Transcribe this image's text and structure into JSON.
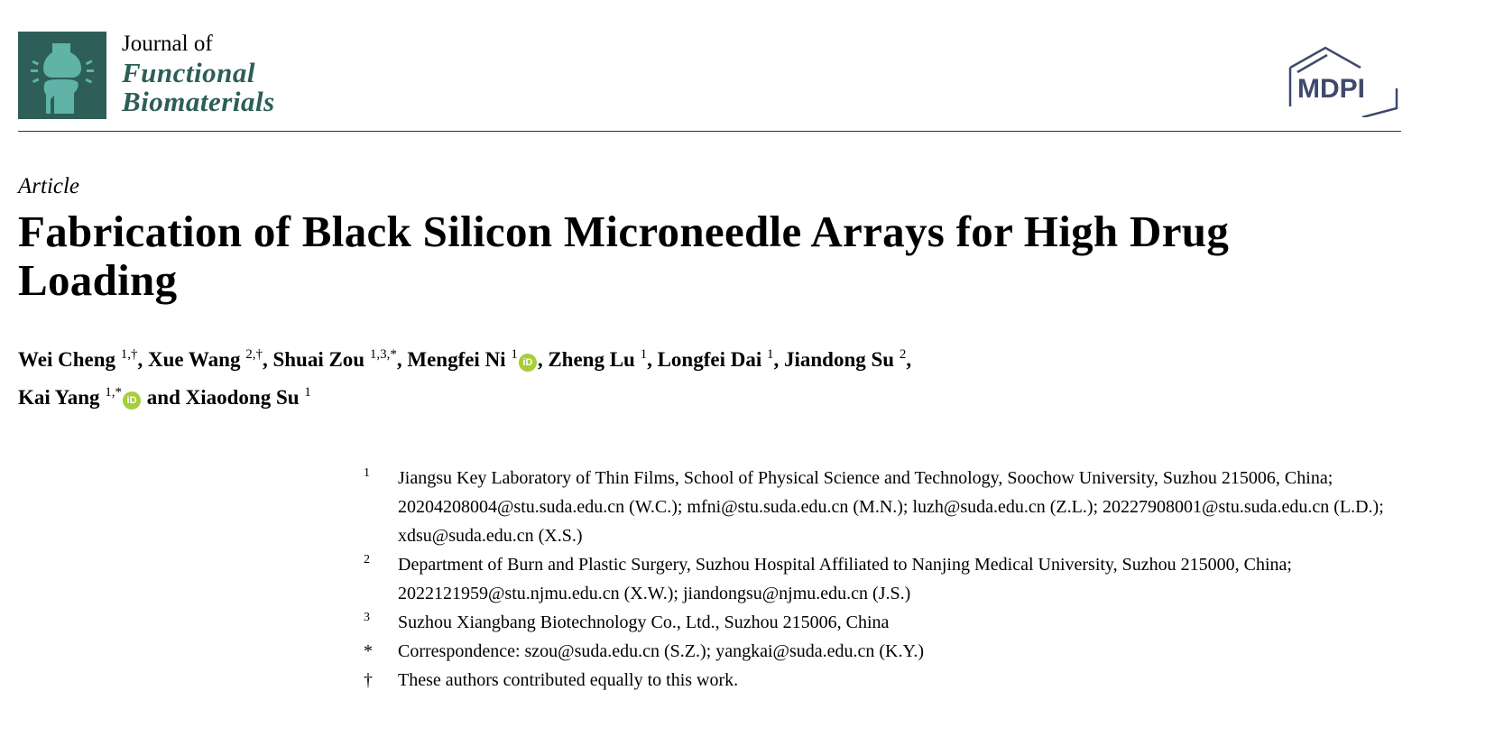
{
  "journal": {
    "line1": "Journal of",
    "line2": "Functional",
    "line3": "Biomaterials",
    "brand_color": "#2d5e57"
  },
  "publisher_logo": {
    "text": "MDPI",
    "color": "#3f4a6b"
  },
  "article_type": "Article",
  "title": "Fabrication of Black Silicon Microneedle Arrays for High Drug Loading",
  "authors": [
    {
      "name": "Wei Cheng",
      "sup": "1,†",
      "orcid": false,
      "sep": ", "
    },
    {
      "name": "Xue Wang",
      "sup": "2,†",
      "orcid": false,
      "sep": ", "
    },
    {
      "name": "Shuai Zou",
      "sup": "1,3,*",
      "orcid": false,
      "sep": ", "
    },
    {
      "name": "Mengfei Ni",
      "sup": "1",
      "orcid": true,
      "sep": ", "
    },
    {
      "name": "Zheng Lu",
      "sup": "1",
      "orcid": false,
      "sep": ", "
    },
    {
      "name": "Longfei Dai",
      "sup": "1",
      "orcid": false,
      "sep": ", "
    },
    {
      "name": "Jiandong Su",
      "sup": "2",
      "orcid": false,
      "sep": ","
    },
    {
      "name": "Kai Yang",
      "sup": "1,*",
      "orcid": true,
      "sep": " and "
    },
    {
      "name": "Xiaodong Su",
      "sup": "1",
      "orcid": false,
      "sep": ""
    }
  ],
  "orcid_icon": {
    "text": "iD",
    "color": "#a6ce39"
  },
  "affiliations": [
    {
      "mark": "1",
      "text": "Jiangsu Key Laboratory of Thin Films, School of Physical Science and Technology, Soochow University, Suzhou 215006, China; 20204208004@stu.suda.edu.cn (W.C.); mfni@stu.suda.edu.cn (M.N.); luzh@suda.edu.cn (Z.L.); 20227908001@stu.suda.edu.cn (L.D.); xdsu@suda.edu.cn (X.S.)"
    },
    {
      "mark": "2",
      "text": "Department of Burn and Plastic Surgery, Suzhou Hospital Affiliated to Nanjing Medical University, Suzhou 215000, China; 2022121959@stu.njmu.edu.cn (X.W.); jiandongsu@njmu.edu.cn (J.S.)"
    },
    {
      "mark": "3",
      "text": "Suzhou Xiangbang Biotechnology Co., Ltd., Suzhou 215006, China"
    },
    {
      "mark": "*",
      "text": "Correspondence: szou@suda.edu.cn (S.Z.); yangkai@suda.edu.cn (K.Y.)"
    },
    {
      "mark": "†",
      "text": "These authors contributed equally to this work."
    }
  ]
}
